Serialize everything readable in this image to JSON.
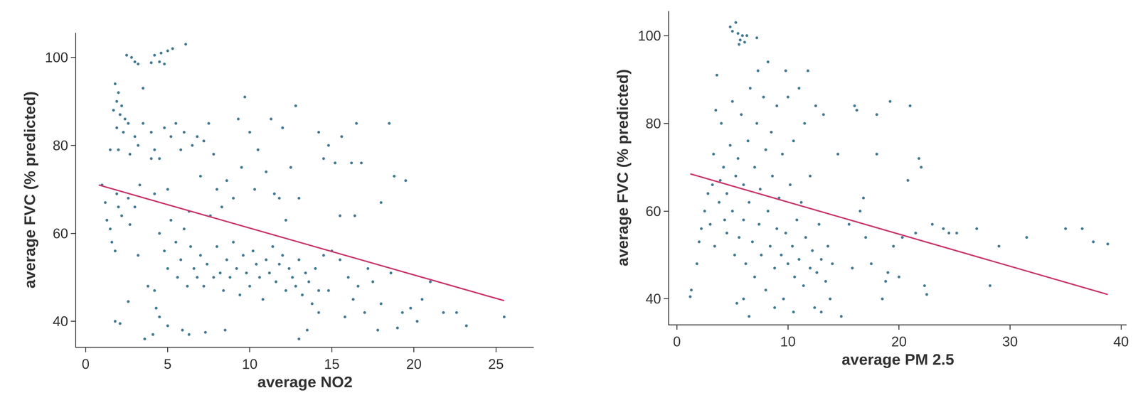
{
  "chart_data": [
    {
      "type": "scatter",
      "x_label": "average NO2",
      "y_label": "average FVC (% predicted)",
      "xlim": [
        -0.57,
        27.3
      ],
      "ylim": [
        34.2,
        105.6
      ],
      "xticks": [
        0,
        5,
        10,
        15,
        20,
        25
      ],
      "yticks": [
        40,
        60,
        80,
        100
      ],
      "grid": false,
      "series": [
        {
          "type": "scatter",
          "marker": "circle",
          "color": "#457a93",
          "x": [
            2.5,
            2.8,
            3.0,
            3.2,
            4.2,
            4.5,
            4.6,
            4.8,
            5.0,
            5.3,
            6.1,
            4.0,
            1.8,
            2.0,
            1.9,
            2.2,
            1.7,
            2.1,
            2.4,
            2.6,
            1.9,
            2.3,
            1.5,
            2.0,
            2.7,
            3.0,
            3.5,
            3.5,
            3.2,
            4.0,
            4.2,
            4.5,
            1.0,
            1.2,
            1.3,
            1.5,
            1.6,
            1.9,
            2.0,
            2.2,
            2.6,
            3.0,
            2.7,
            1.8,
            3.3,
            1.8,
            2.1,
            2.6,
            3.6,
            4.1,
            4.3,
            4.5,
            5.0,
            5.9,
            6.3,
            7.3,
            8.5,
            3.2,
            3.8,
            4.2,
            4.5,
            4.8,
            5.0,
            5.2,
            5.5,
            5.6,
            5.8,
            6.0,
            6.2,
            6.4,
            6.6,
            6.8,
            7.0,
            7.2,
            7.4,
            7.6,
            7.8,
            8.0,
            8.2,
            8.4,
            8.6,
            8.8,
            9.0,
            9.2,
            9.4,
            9.6,
            9.8,
            10.0,
            10.2,
            10.4,
            10.6,
            10.8,
            11.0,
            11.2,
            11.4,
            11.6,
            11.8,
            12.0,
            12.2,
            12.4,
            12.6,
            12.8,
            13.0,
            13.2,
            13.4,
            13.6,
            13.8,
            14.0,
            14.2,
            14.5,
            14.2,
            13.5,
            13.0,
            4.8,
            5.2,
            5.5,
            5.8,
            6.0,
            6.5,
            6.8,
            7.2,
            7.5,
            7.8,
            8.0,
            8.3,
            8.6,
            9.0,
            9.3,
            9.7,
            9.5,
            10.0,
            10.3,
            10.5,
            11.0,
            11.3,
            11.5,
            11.8,
            12.0,
            12.5,
            12.8,
            13.0,
            12.2,
            6.3,
            7.0,
            5.0,
            4.2,
            4.0,
            14.2,
            14.5,
            14.8,
            15.2,
            15.6,
            16.2,
            16.5,
            16.8,
            15.5,
            16.4,
            18.0,
            18.5,
            18.8,
            19.5,
            15,
            15.5,
            16,
            16.3,
            16.6,
            17.2,
            17.5,
            17.0,
            18.0,
            18.6,
            19.0,
            19.3,
            19.8,
            20.2,
            21.0,
            21.8,
            22.6,
            23.2,
            25.5,
            20.5,
            15.8,
            14.8,
            17.8
          ],
          "values": [
            100.5,
            100,
            99,
            98.5,
            100.5,
            99,
            101,
            98.5,
            101.5,
            102,
            103,
            98.8,
            94,
            92,
            90,
            89,
            88,
            87,
            86,
            85,
            84,
            83,
            79,
            79,
            78,
            82,
            85,
            93,
            80,
            83,
            79,
            77,
            71,
            67,
            63,
            61,
            58,
            69,
            66,
            64,
            68,
            66,
            62,
            56,
            71,
            40,
            39.5,
            44.5,
            36,
            37,
            43,
            41,
            39,
            38,
            37,
            37.5,
            38,
            55,
            48,
            47,
            60,
            56,
            52,
            63,
            58,
            50,
            54,
            61,
            48,
            57,
            52,
            50,
            55,
            48,
            53,
            64,
            50,
            57,
            51,
            47,
            54,
            50,
            58,
            52,
            46,
            55,
            51,
            48,
            56,
            53,
            50,
            45,
            54,
            51,
            57,
            49,
            53,
            55,
            47,
            52,
            50,
            48,
            54,
            46,
            51,
            49,
            44,
            52,
            47,
            55,
            42,
            38,
            36,
            84,
            82,
            85,
            79,
            83,
            80,
            82,
            81,
            85,
            78,
            70,
            66,
            72,
            68,
            86,
            91,
            75,
            83,
            70,
            79,
            74,
            86,
            69,
            68,
            84,
            75,
            89,
            68,
            63,
            65,
            73,
            70,
            69,
            77,
            83,
            77,
            80,
            76,
            82,
            76,
            85,
            76,
            64,
            64,
            67,
            85,
            73,
            72,
            56,
            54,
            50,
            45,
            48,
            52,
            49,
            42,
            44,
            51,
            38.5,
            42,
            43,
            40,
            49,
            42,
            42,
            39,
            41,
            45,
            41,
            47,
            38
          ]
        },
        {
          "type": "line",
          "line_style": "solid",
          "color": "#c9376b",
          "x": [
            0.8,
            25.5
          ],
          "values": [
            71,
            44.7
          ]
        }
      ]
    },
    {
      "type": "scatter",
      "x_label": "average PM 2.5",
      "y_label": "average FVC (% predicted)",
      "xlim": [
        -0.7,
        40.5
      ],
      "ylim": [
        34.2,
        105.6
      ],
      "xticks": [
        0,
        10,
        20,
        30,
        40
      ],
      "yticks": [
        40,
        60,
        80,
        100
      ],
      "grid": false,
      "series": [
        {
          "type": "scatter",
          "marker": "circle",
          "color": "#457a93",
          "x": [
            4.8,
            5.0,
            5.3,
            5.5,
            5.7,
            5.9,
            6.1,
            6.3,
            7.2,
            5.6,
            1.2,
            1.3,
            1.8,
            2.0,
            2.2,
            2.5,
            2.8,
            3.0,
            3.2,
            3.3,
            3.5,
            3.6,
            3.8,
            3.4,
            4.0,
            4.2,
            4.5,
            4.5,
            4.8,
            5.0,
            5.0,
            5.2,
            5.3,
            5.5,
            5.6,
            5.8,
            6.0,
            6.0,
            6.2,
            6.4,
            6.5,
            6.6,
            6.8,
            7.0,
            7.0,
            7.2,
            7.4,
            7.5,
            7.6,
            7.8,
            8.0,
            8.0,
            8.2,
            8.4,
            8.5,
            8.6,
            8.8,
            9.0,
            9.0,
            9.2,
            9.4,
            9.5,
            9.6,
            9.8,
            10.0,
            10.0,
            10.2,
            10.4,
            10.5,
            10.6,
            10.8,
            11.0,
            11.0,
            11.2,
            11.4,
            11.5,
            11.6,
            11.8,
            12.0,
            12.0,
            12.2,
            12.4,
            12.5,
            12.6,
            12.8,
            13.0,
            13.0,
            13.2,
            13.4,
            13.6,
            13.8,
            14.0,
            14.5,
            14.8,
            6.0,
            5.4,
            6.5,
            8.8,
            10.5,
            4.3,
            3.9,
            7.3,
            9.8,
            8.2,
            15.5,
            16.0,
            16.2,
            16.8,
            17.0,
            17.5,
            18.0,
            18.0,
            18.5,
            18.8,
            19.0,
            19.2,
            20.0,
            20.3,
            20.8,
            21.0,
            21.5,
            21.8,
            22.0,
            22.3,
            22.5,
            23.0,
            24.0,
            24.5,
            25.2,
            27.0,
            28.2,
            29.0,
            31.5,
            35,
            36.5,
            37.5,
            38.8,
            15.8,
            16.5,
            19.5
          ],
          "values": [
            102,
            101,
            103,
            100.5,
            99,
            100,
            98.5,
            100,
            99.5,
            98,
            40.5,
            42,
            48,
            53,
            56,
            60,
            64,
            57,
            66,
            73,
            83,
            91,
            62,
            52,
            80,
            70,
            64,
            55,
            75,
            85,
            60,
            50,
            68,
            72,
            54,
            82,
            66,
            58,
            48,
            76,
            62,
            88,
            53,
            70,
            45,
            80,
            57,
            65,
            50,
            86,
            74,
            42,
            60,
            52,
            78,
            68,
            47,
            56,
            84,
            63,
            50,
            73,
            40,
            55,
            48,
            86,
            66,
            52,
            76,
            45,
            58,
            49,
            88,
            62,
            43,
            80,
            54,
            92,
            47,
            68,
            51,
            38,
            84,
            46,
            57,
            49,
            37,
            82,
            44,
            52,
            40,
            48,
            73,
            36,
            40,
            39,
            36,
            38,
            37,
            58,
            67,
            92,
            92,
            94,
            57,
            84,
            83,
            63,
            54,
            48,
            73,
            82,
            40,
            44,
            46,
            85,
            45,
            54,
            67,
            84,
            55,
            72,
            70,
            43,
            41,
            57,
            56,
            55,
            55,
            56,
            43,
            52,
            54,
            56,
            56,
            53,
            52.5,
            47,
            60,
            52
          ]
        },
        {
          "type": "line",
          "line_style": "solid",
          "color": "#c9376b",
          "x": [
            1.2,
            38.8
          ],
          "values": [
            68.5,
            41
          ]
        }
      ]
    }
  ]
}
